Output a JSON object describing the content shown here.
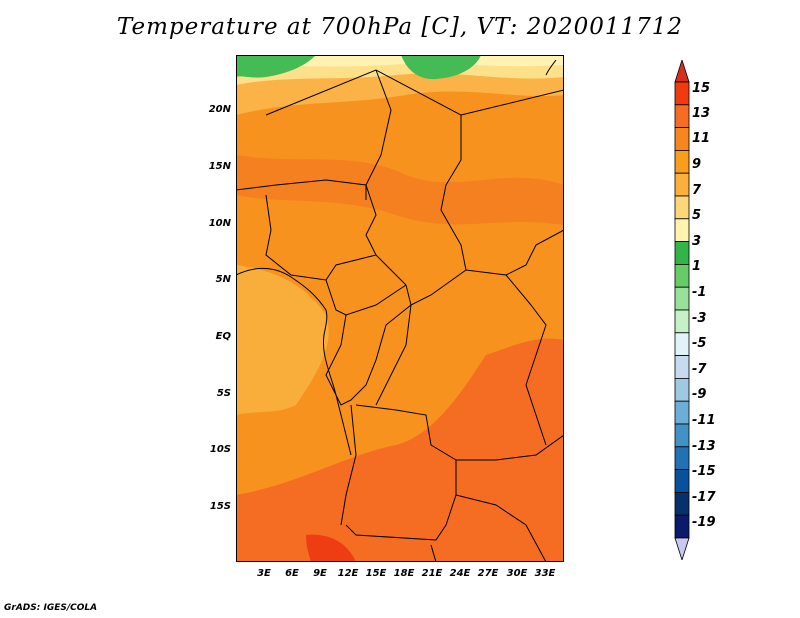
{
  "title": "Temperature at 700hPa [C], VT: 2020011712",
  "credit": "GrADS: IGES/COLA",
  "lat_labels": [
    "20N",
    "15N",
    "10N",
    "5N",
    "EQ",
    "5S",
    "10S",
    "15S"
  ],
  "lon_labels": [
    "3E",
    "6E",
    "9E",
    "12E",
    "15E",
    "18E",
    "21E",
    "24E",
    "27E",
    "30E",
    "33E"
  ],
  "colorbar": {
    "labels": [
      "15",
      "13",
      "11",
      "9",
      "7",
      "5",
      "3",
      "1",
      "-1",
      "-3",
      "-5",
      "-7",
      "-9",
      "-11",
      "-13",
      "-15",
      "-17",
      "-19"
    ],
    "colors": [
      "#d7301f",
      "#f03b10",
      "#f46d22",
      "#f7861f",
      "#f99d1c",
      "#fbb03b",
      "#fcd77a",
      "#fff3b0",
      "#33b44a",
      "#66cc66",
      "#99e099",
      "#c6f0c6",
      "#e0f3f8",
      "#c6dbef",
      "#9ecae1",
      "#6baed6",
      "#4292c6",
      "#2171b5",
      "#08519c",
      "#08306b",
      "#0b1a6b",
      "#c8c8f0"
    ]
  }
}
